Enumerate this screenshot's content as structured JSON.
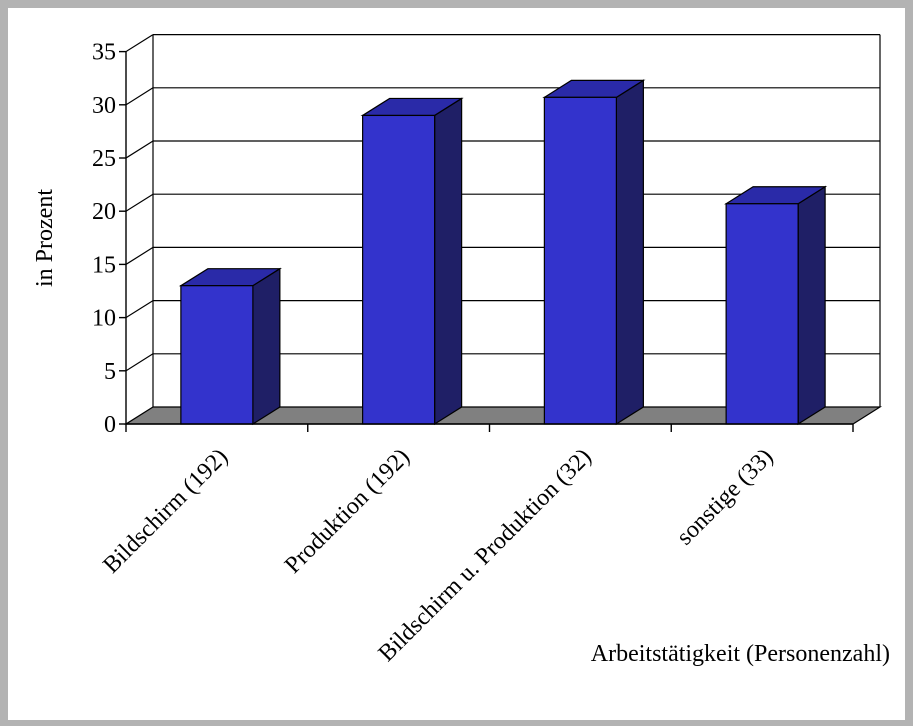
{
  "chart_data": {
    "type": "bar",
    "categories": [
      "Bildschirm (192)",
      "Produktion (192)",
      "Bildschirm u. Produktion (32)",
      "sonstige (33)"
    ],
    "values": [
      13,
      29,
      30.7,
      20.7
    ],
    "ylim": [
      0,
      35
    ],
    "yticks": [
      "0",
      "5",
      "10",
      "15",
      "20",
      "25",
      "30",
      "35"
    ],
    "xlabel": "Arbeitstätigkeit (Personenzahl)",
    "ylabel": "in Prozent",
    "grid": true,
    "legend": "none",
    "colors": {
      "bar_front": "#3333cc",
      "bar_side": "#1f1f66",
      "bar_top": "#2a2aa8",
      "floor": "#808080"
    }
  }
}
